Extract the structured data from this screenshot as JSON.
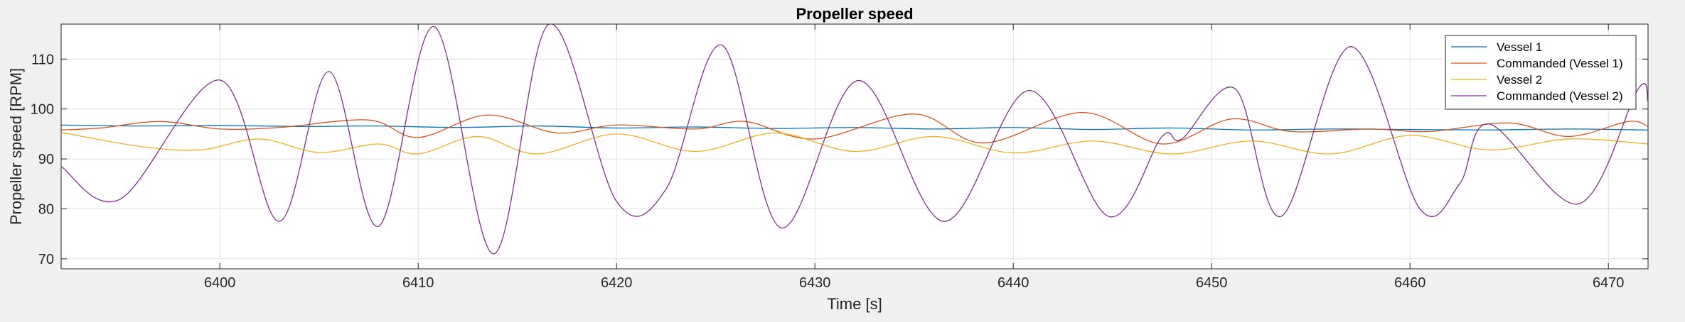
{
  "chart_data": {
    "type": "line",
    "title": "Propeller speed",
    "xlabel": "Time [s]",
    "ylabel": "Propeller speed [RPM]",
    "xlim": [
      6392,
      6472
    ],
    "ylim": [
      68,
      117
    ],
    "xticks": [
      6400,
      6410,
      6420,
      6430,
      6440,
      6450,
      6460,
      6470
    ],
    "yticks": [
      70,
      80,
      90,
      100,
      110
    ],
    "grid": true,
    "legend_position": "top-right",
    "series": [
      {
        "name": "Vessel 1",
        "color": "#0072BD",
        "x": [
          6392,
          6396,
          6400,
          6404,
          6408,
          6412,
          6416,
          6420,
          6424,
          6428,
          6432,
          6436,
          6440,
          6444,
          6448,
          6452,
          6456,
          6460,
          6464,
          6468,
          6472
        ],
        "y": [
          96.8,
          96.6,
          96.7,
          96.5,
          96.6,
          96.3,
          96.6,
          96.2,
          96.4,
          96.1,
          96.3,
          96.0,
          96.3,
          95.9,
          96.2,
          95.8,
          96.0,
          95.9,
          95.8,
          96.0,
          95.8
        ]
      },
      {
        "name": "Commanded (Vessel 1)",
        "color": "#D95319",
        "x": [
          6392,
          6394,
          6397,
          6400,
          6403,
          6407.5,
          6410,
          6413.5,
          6417,
          6420,
          6424,
          6426.5,
          6430,
          6435,
          6438.5,
          6443.5,
          6447.5,
          6451,
          6454,
          6458,
          6461,
          6465,
          6468,
          6471,
          6472
        ],
        "y": [
          95.8,
          96.2,
          97.5,
          96.0,
          96.3,
          97.8,
          94.3,
          98.8,
          95.2,
          96.8,
          96.0,
          97.5,
          94.0,
          99.0,
          93.2,
          99.3,
          93.0,
          98.0,
          95.5,
          96.0,
          95.5,
          97.2,
          94.5,
          97.5,
          96.5
        ]
      },
      {
        "name": "Vessel 2",
        "color": "#EDB120",
        "x": [
          6392,
          6396,
          6399,
          6402,
          6405,
          6408,
          6410,
          6413,
          6416,
          6420,
          6424,
          6428,
          6432,
          6436,
          6440,
          6444,
          6448,
          6452,
          6456,
          6460,
          6464,
          6468,
          6472
        ],
        "y": [
          95.3,
          92.5,
          91.8,
          94.0,
          91.3,
          93.0,
          91.0,
          94.5,
          91.0,
          95.0,
          91.5,
          95.2,
          91.5,
          94.5,
          91.2,
          93.6,
          91.0,
          93.6,
          91.0,
          94.7,
          91.8,
          94.0,
          93.0
        ]
      },
      {
        "name": "Commanded (Vessel 2)",
        "color": "#7E2F8E",
        "x": [
          6392,
          6395,
          6400,
          6403,
          6405.5,
          6408,
          6410.8,
          6413.8,
          6416.6,
          6420,
          6422.5,
          6425.3,
          6428.3,
          6432.2,
          6436.5,
          6440.8,
          6444.8,
          6447.5,
          6448.5,
          6451.2,
          6453.5,
          6457,
          6460.5,
          6462.5,
          6464,
          6468.5,
          6471.5,
          6472
        ],
        "y": [
          88.5,
          82.0,
          105.8,
          77.5,
          107.5,
          76.5,
          116.5,
          71.0,
          117.0,
          81.5,
          84.0,
          112.8,
          76.2,
          105.7,
          77.5,
          103.7,
          78.5,
          94.5,
          94.0,
          104.0,
          78.5,
          112.5,
          80.0,
          85.0,
          97.0,
          81.0,
          104.0,
          101.5
        ]
      }
    ]
  }
}
